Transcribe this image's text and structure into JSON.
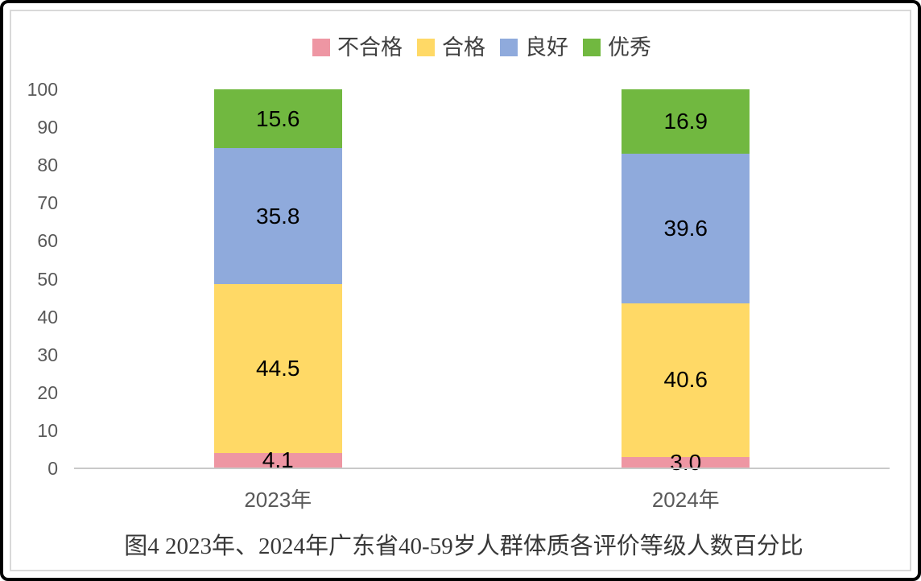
{
  "chart_data": {
    "type": "bar",
    "stacked": true,
    "orientation": "vertical",
    "categories": [
      "2023年",
      "2024年"
    ],
    "series": [
      {
        "name": "不合格",
        "color": "#EE96A3",
        "values": [
          4.1,
          3.0
        ]
      },
      {
        "name": "合格",
        "color": "#FFD966",
        "values": [
          44.5,
          40.6
        ]
      },
      {
        "name": "良好",
        "color": "#8FAADC",
        "values": [
          35.8,
          39.6
        ]
      },
      {
        "name": "优秀",
        "color": "#71B840",
        "values": [
          15.6,
          16.9
        ]
      }
    ],
    "ylim": [
      0,
      100
    ],
    "yticks": [
      0,
      10,
      20,
      30,
      40,
      50,
      60,
      70,
      80,
      90,
      100
    ],
    "grid": "off",
    "legend_position": "top",
    "title": "图4  2023年、2024年广东省40-59岁人群体质各评价等级人数百分比"
  },
  "colors": {
    "axis_line": "#C9C9C9",
    "chart_outline": "#D9D9D9",
    "tick_text": "#595959",
    "legend_text": "#404040",
    "data_label_text": "#000000",
    "title_text": "#383838",
    "background": "#FFFFFF"
  }
}
